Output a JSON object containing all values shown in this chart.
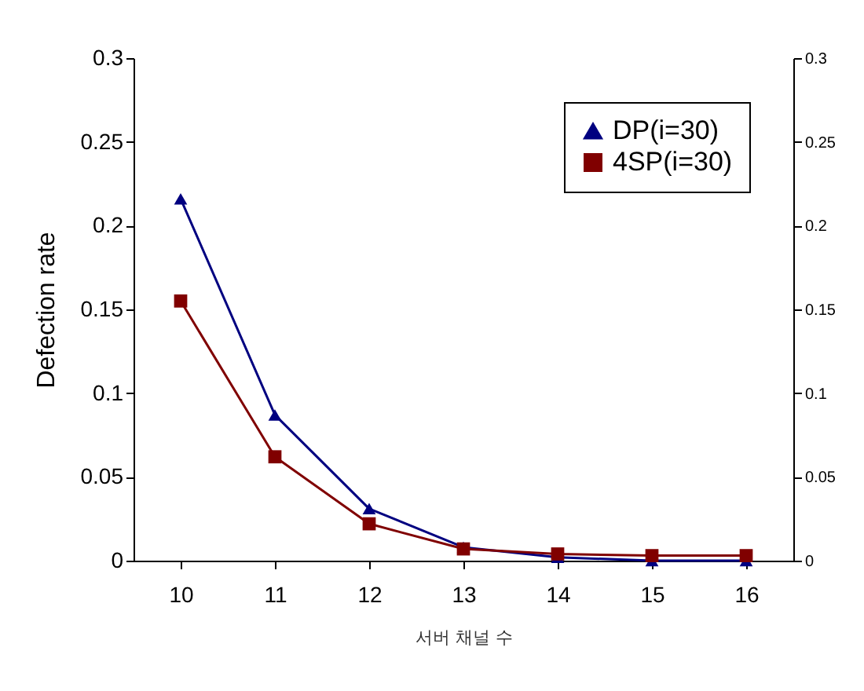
{
  "chart_data": {
    "type": "line",
    "xlabel": "서버 채널 수",
    "ylabel": "Defection rate",
    "categories": [
      "10",
      "11",
      "12",
      "13",
      "14",
      "15",
      "16"
    ],
    "series": [
      {
        "name": "DP(i=30)",
        "color": "#000080",
        "marker": "triangle",
        "values": [
          0.216,
          0.087,
          0.031,
          0.008,
          0.002,
          0,
          0
        ]
      },
      {
        "name": "4SP(i=30)",
        "color": "#800000",
        "marker": "square",
        "values": [
          0.155,
          0.062,
          0.022,
          0.007,
          0.004,
          0.003,
          0.003
        ]
      }
    ],
    "ylim": [
      0,
      0.3
    ],
    "yticks": [
      {
        "value": 0,
        "label": "0"
      },
      0.05,
      0.1,
      0.15,
      0.2,
      0.25,
      0.3
    ],
    "y2lim": [
      0,
      0.3
    ],
    "y2ticks": [
      {
        "value": 0,
        "label": "0"
      },
      0.05,
      0.1,
      0.15,
      0.2,
      0.25,
      0.3
    ],
    "legend": "top right",
    "grid": false
  }
}
